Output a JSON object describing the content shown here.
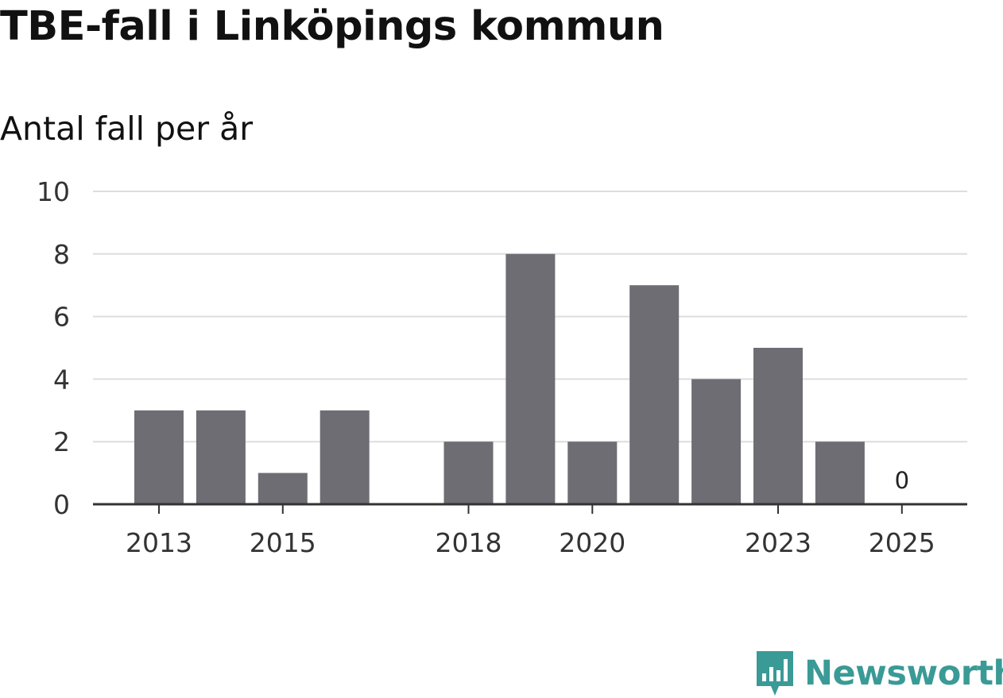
{
  "header": {
    "title": "TBE-fall i Linköpings kommun",
    "subtitle": "Antal fall per år"
  },
  "brand": {
    "name": "Newsworthy",
    "icon": "newsworthy-logo-icon",
    "color": "#3a9a96"
  },
  "colors": {
    "bar": "#6e6d73",
    "grid": "#dddddd",
    "axis": "#333333"
  },
  "chart_data": {
    "type": "bar",
    "title": "TBE-fall i Linköpings kommun",
    "subtitle": "Antal fall per år",
    "xlabel": "",
    "ylabel": "",
    "categories": [
      "2013",
      "2014",
      "2015",
      "2016",
      "2017",
      "2018",
      "2019",
      "2020",
      "2021",
      "2022",
      "2023",
      "2024",
      "2025"
    ],
    "values": [
      3,
      3,
      1,
      3,
      null,
      2,
      8,
      2,
      7,
      4,
      5,
      2,
      0
    ],
    "x_tick_labels": [
      "2013",
      "2015",
      "2018",
      "2020",
      "2023",
      "2025"
    ],
    "y_ticks": [
      "0",
      "2",
      "4",
      "6",
      "8",
      "10"
    ],
    "ylim": [
      0,
      10
    ],
    "grid": true,
    "data_labels": [
      {
        "category": "2025",
        "text": "0"
      }
    ]
  }
}
